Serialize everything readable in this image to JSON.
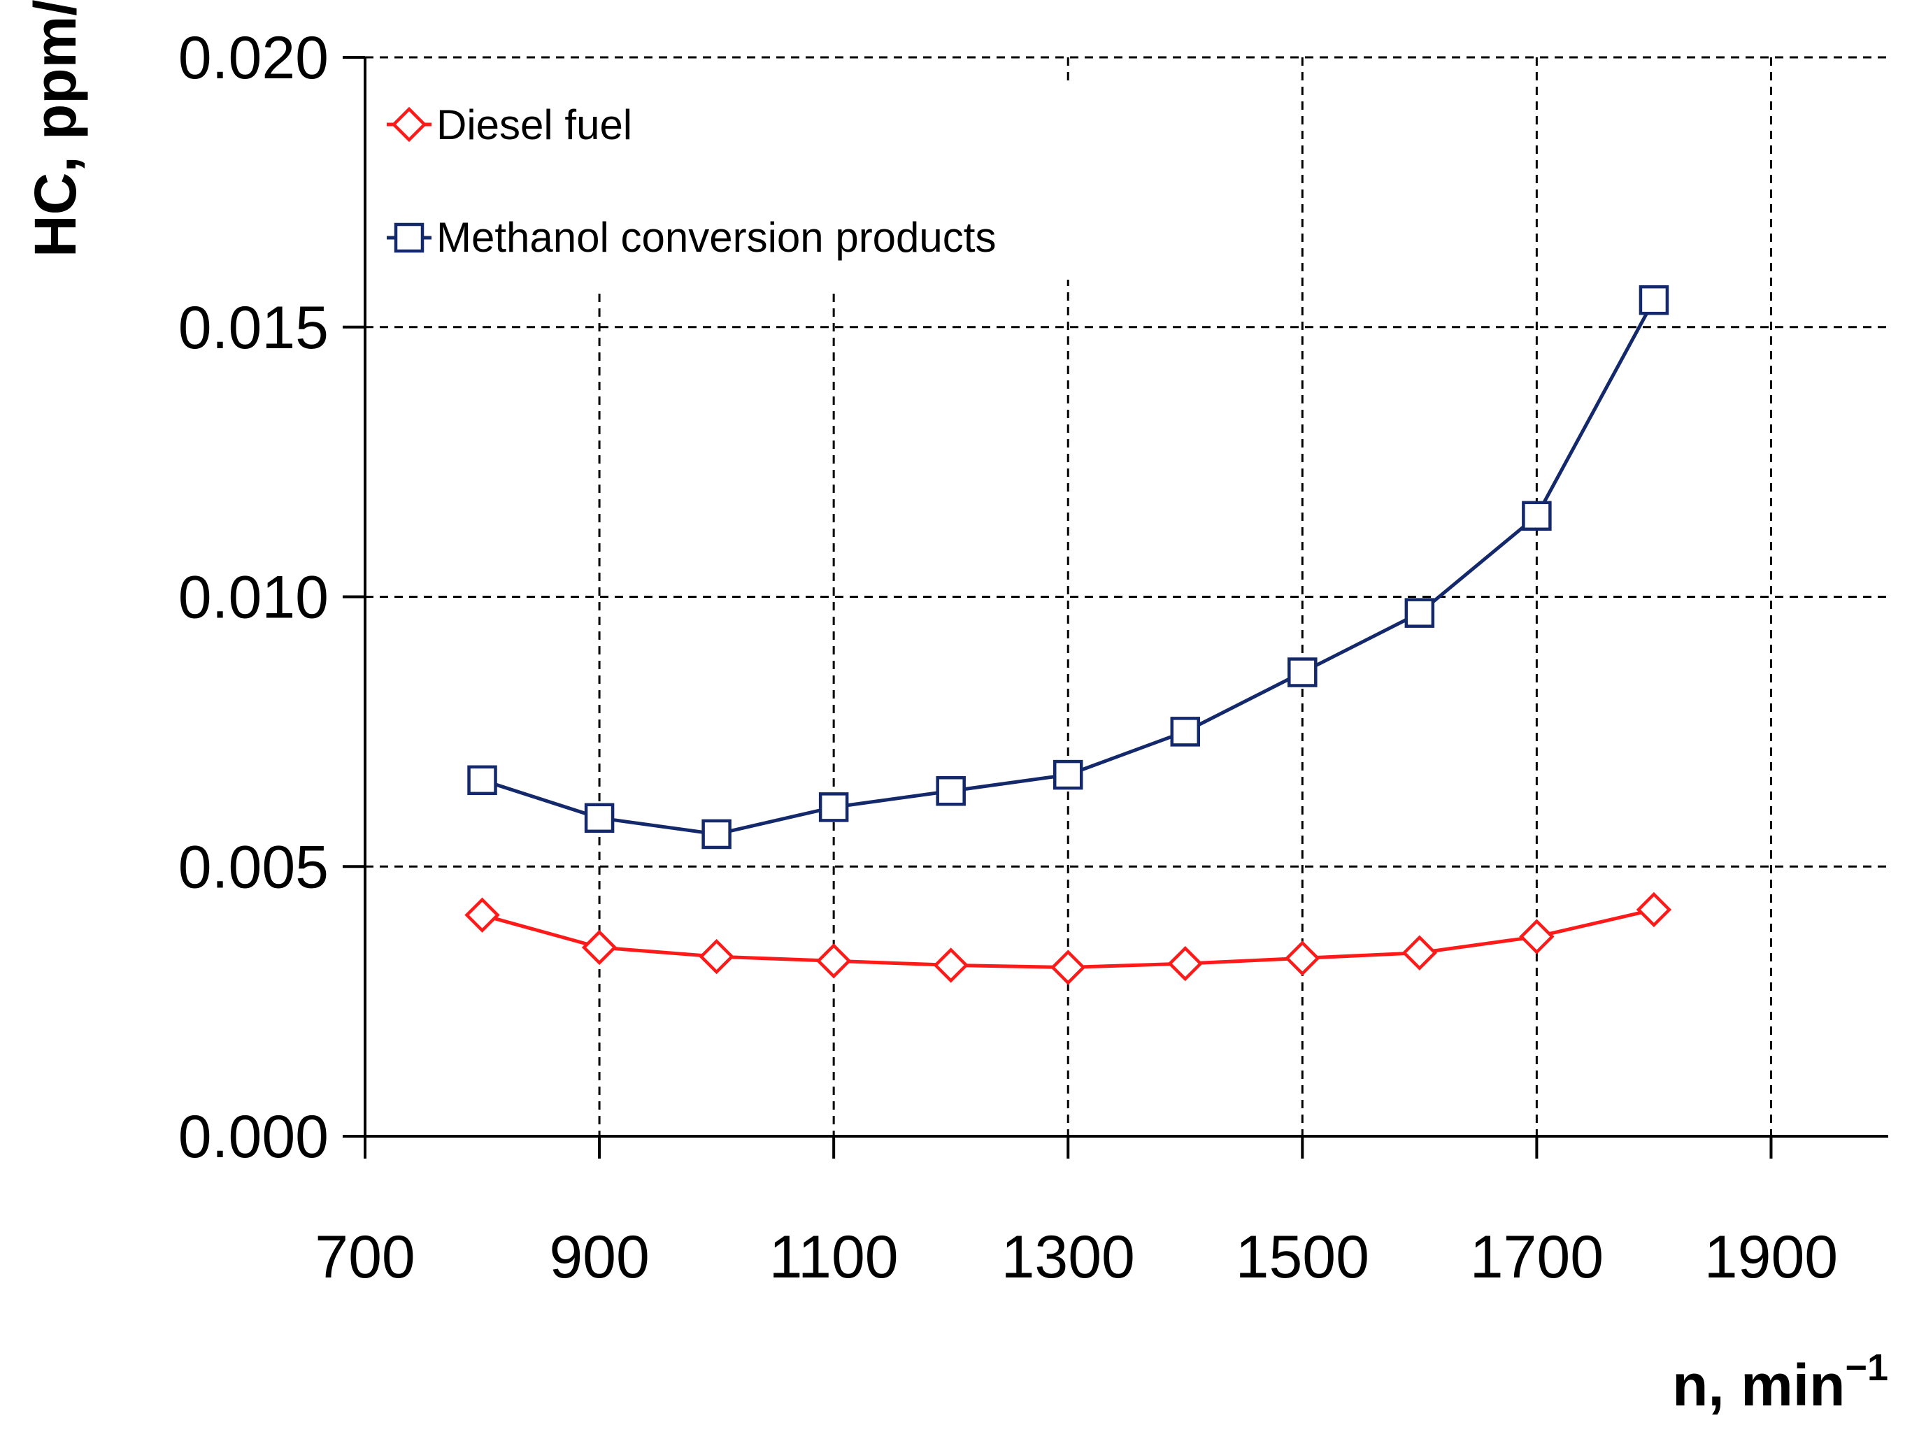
{
  "chart_data": {
    "type": "line",
    "title": "",
    "xlabel": "n, min",
    "xlabel_sup": "−1",
    "ylabel": "HC, ppm/kW",
    "xlim": [
      700,
      2000
    ],
    "ylim": [
      0,
      0.02
    ],
    "x_ticks": [
      700,
      900,
      1100,
      1300,
      1500,
      1700,
      1900
    ],
    "y_ticks": [
      "0.000",
      "0.005",
      "0.010",
      "0.015",
      "0.020"
    ],
    "grid": true,
    "legend_position": "top-left",
    "x": [
      800,
      900,
      1000,
      1100,
      1200,
      1300,
      1400,
      1500,
      1600,
      1700,
      1800
    ],
    "series": [
      {
        "name": "Diesel fuel",
        "color": "#ff1a1a",
        "marker": "diamond",
        "values": [
          0.0041,
          0.0035,
          0.00333,
          0.00325,
          0.00317,
          0.00313,
          0.0032,
          0.0033,
          0.0034,
          0.0037,
          0.0042
        ]
      },
      {
        "name": "Methanol conversion products",
        "color": "#14296b",
        "marker": "square",
        "values": [
          0.0066,
          0.0059,
          0.0056,
          0.0061,
          0.0064,
          0.0067,
          0.0075,
          0.0086,
          0.0097,
          0.0115,
          0.0155
        ]
      }
    ]
  }
}
